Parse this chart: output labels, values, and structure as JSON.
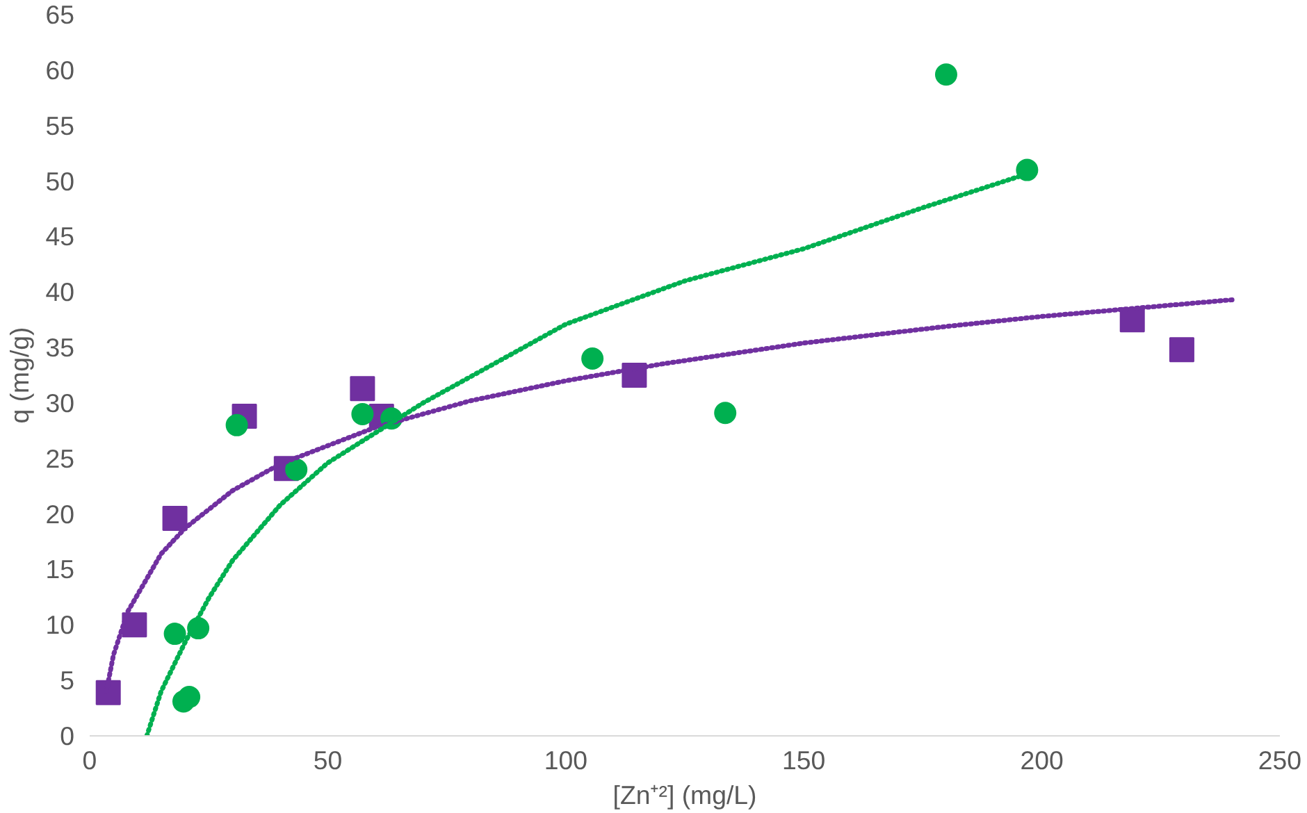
{
  "chart_data": {
    "type": "scatter",
    "xlabel": "[Zn⁺²] (mg/L)",
    "ylabel": "q (mg/g)",
    "xlim": [
      0,
      250
    ],
    "ylim": [
      0,
      65
    ],
    "xticks": [
      0,
      50,
      100,
      150,
      200,
      250
    ],
    "yticks": [
      0,
      5,
      10,
      15,
      20,
      25,
      30,
      35,
      40,
      45,
      50,
      55,
      60,
      65
    ],
    "grid": false,
    "series": [
      {
        "marker": "square",
        "color": "#7030a0",
        "x": [
          3.9,
          9.4,
          17.9,
          32.5,
          41.3,
          57.3,
          61.3,
          114.4,
          219,
          229.4
        ],
        "values": [
          3.9,
          10.0,
          19.6,
          28.8,
          24.1,
          31.3,
          28.8,
          32.5,
          37.5,
          34.8
        ]
      },
      {
        "marker": "circle",
        "color": "#00b050",
        "x": [
          17.9,
          19.7,
          20.9,
          22.8,
          30.9,
          43.4,
          57.3,
          63.4,
          105.6,
          133.5,
          179.9,
          196.9
        ],
        "values": [
          9.2,
          3.1,
          3.5,
          9.7,
          28.0,
          24.0,
          29.0,
          28.6,
          34.0,
          29.1,
          59.6,
          51.0
        ]
      },
      {
        "type": "line",
        "line_style": "dotted",
        "color": "#7030a0",
        "x": [
          3.5,
          5,
          8,
          15,
          20,
          30,
          40,
          60,
          80,
          100,
          120,
          150,
          180,
          200,
          240
        ],
        "values": [
          4.0,
          7.3,
          11.2,
          16.4,
          18.7,
          22.1,
          24.5,
          27.8,
          30.2,
          32.0,
          33.5,
          35.4,
          36.9,
          37.8,
          39.3
        ]
      },
      {
        "type": "line",
        "line_style": "dotted",
        "color": "#00b050",
        "x": [
          12,
          15,
          20,
          25,
          30,
          40,
          50,
          70,
          100,
          125,
          150,
          175,
          198
        ],
        "values": [
          0,
          4.0,
          8.4,
          12.4,
          15.8,
          20.8,
          24.6,
          30.0,
          37.1,
          41.0,
          43.9,
          47.6,
          50.8
        ]
      }
    ]
  }
}
